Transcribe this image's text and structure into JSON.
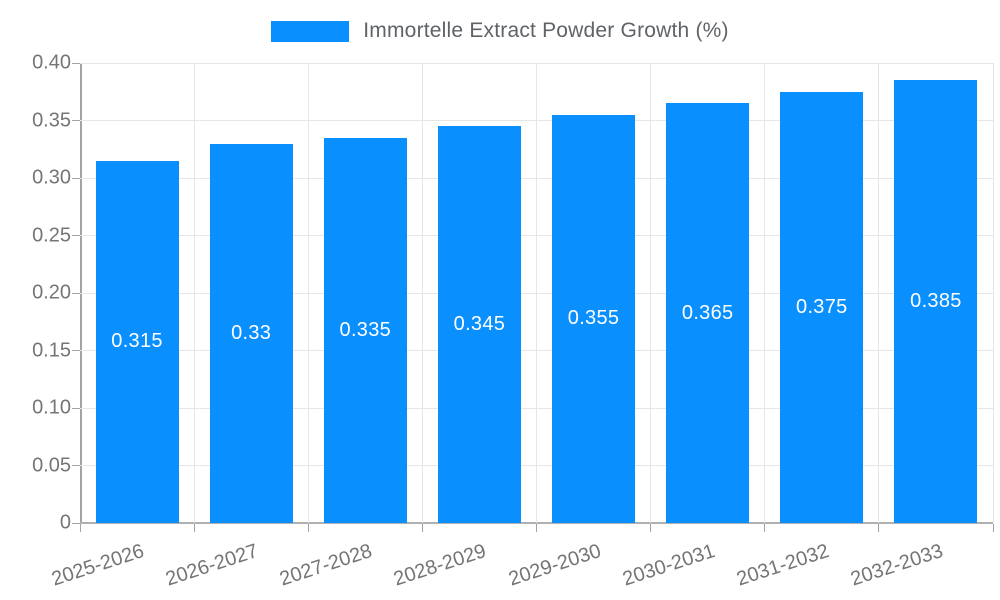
{
  "legend": {
    "label": "Immortelle Extract Powder Growth (%)",
    "swatch_color": "#0a8fff"
  },
  "chart_data": {
    "type": "bar",
    "title": "Immortelle Extract Powder Growth (%)",
    "categories": [
      "2025-2026",
      "2026-2027",
      "2027-2028",
      "2028-2029",
      "2029-2030",
      "2030-2031",
      "2031-2032",
      "2032-2033"
    ],
    "values": [
      0.315,
      0.33,
      0.335,
      0.345,
      0.355,
      0.365,
      0.375,
      0.385
    ],
    "value_labels": [
      "0.315",
      "0.33",
      "0.335",
      "0.345",
      "0.355",
      "0.365",
      "0.375",
      "0.385"
    ],
    "xlabel": "",
    "ylabel": "",
    "ylim": [
      0,
      0.4
    ],
    "ytick_step": 0.05,
    "ytick_labels": [
      "0",
      "0.05",
      "0.10",
      "0.15",
      "0.20",
      "0.25",
      "0.30",
      "0.35",
      "0.40"
    ],
    "grid": true,
    "legend_position": "top-center",
    "value_label_position": "center-of-bar",
    "colors": {
      "bar": "#0a8fff",
      "grid": "#e6e6e6",
      "axis": "#a3a3a3",
      "tick_text": "#757575",
      "legend_text": "#5f6368",
      "value_text": "#ffffff",
      "background": "#ffffff"
    }
  }
}
